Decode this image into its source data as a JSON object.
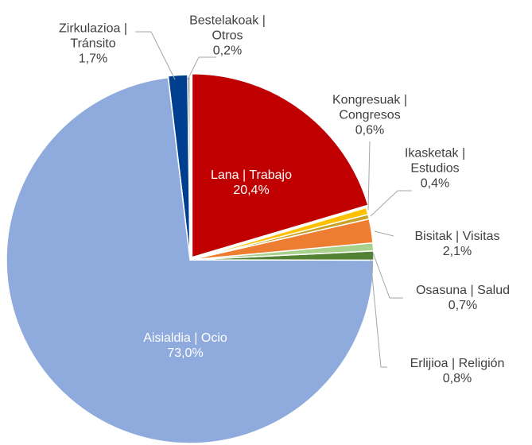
{
  "chart_data": {
    "type": "pie",
    "categories": [
      "Lana | Trabajo",
      "Kongresuak | Congresos",
      "Ikasketak | Estudios",
      "Bisitak | Visitas",
      "Osasuna | Salud",
      "Erlijioa | Religión",
      "Aisialdia | Ocio",
      "Zirkulazioa | Tránsito",
      "Bestelakoak | Otros"
    ],
    "values": [
      20.4,
      0.6,
      0.4,
      2.1,
      0.7,
      0.8,
      73.0,
      1.7,
      0.2
    ],
    "value_labels": [
      "20,4%",
      "0,6%",
      "0,4%",
      "2,1%",
      "0,7%",
      "0,8%",
      "73,0%",
      "1,7%",
      "0,2%"
    ],
    "colors": [
      "#c00000",
      "#ffc000",
      "#c9a227",
      "#ed7d31",
      "#a9d18e",
      "#548235",
      "#8faadc",
      "#003f8f",
      "#7f7f7f"
    ]
  }
}
